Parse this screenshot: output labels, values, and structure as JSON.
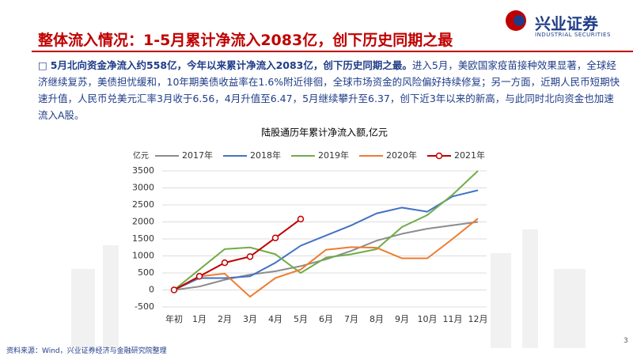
{
  "header": {
    "title": "整体流入情况：1-5月累计净流入2083亿，创下历史同期之最",
    "logo": "兴业证券",
    "logo_en": "INDUSTRIAL SECURITIES"
  },
  "body": {
    "bold": "5月北向资金净流入约558亿，今年以来累计净流入2083亿，创下历史同期之最。",
    "text": "进入5月，美欧国家疫苗接种效果显著，全球经济继续复苏，美债担忧缓和，10年期美债收益率在1.6%附近徘徊，全球市场资金的风险偏好持续修复；另一方面，近期人民币短期快速升值，人民币兑美元汇率3月收于6.56，4月升值至6.47，5月继续攀升至6.37，创下近3年以来的新高，与此同时北向资金也加速流入A股。"
  },
  "footer": {
    "source": "资料来源：Wind，兴业证券经济与金融研究院整理",
    "page": "3"
  },
  "chart_data": {
    "type": "line",
    "title": "陆股通历年累计净流入额,亿元",
    "y_unit": "亿元",
    "categories": [
      "年初",
      "1月",
      "2月",
      "3月",
      "4月",
      "5月",
      "6月",
      "7月",
      "8月",
      "9月",
      "10月",
      "11月",
      "12月"
    ],
    "series": [
      {
        "name": "2017年",
        "color": "#8c8c8c",
        "values": [
          0,
          100,
          300,
          450,
          550,
          700,
          900,
          1150,
          1450,
          1650,
          1800,
          1900,
          2000
        ]
      },
      {
        "name": "2018年",
        "color": "#4472c4",
        "values": [
          0,
          350,
          350,
          400,
          800,
          1300,
          1600,
          1900,
          2250,
          2420,
          2300,
          2750,
          2930
        ]
      },
      {
        "name": "2019年",
        "color": "#70ad47",
        "values": [
          0,
          600,
          1200,
          1250,
          1050,
          500,
          950,
          1050,
          1200,
          1850,
          2200,
          2800,
          3500
        ]
      },
      {
        "name": "2020年",
        "color": "#ed7d31",
        "values": [
          0,
          400,
          480,
          -200,
          350,
          600,
          1180,
          1260,
          1240,
          930,
          930,
          1500,
          2100
        ]
      },
      {
        "name": "2021年",
        "color": "#c00000",
        "markers": true,
        "values": [
          0,
          400,
          800,
          980,
          1530,
          2083,
          null,
          null,
          null,
          null,
          null,
          null,
          null
        ]
      }
    ],
    "ylim": [
      -500,
      3500
    ],
    "yticks": [
      -500,
      0,
      500,
      1000,
      1500,
      2000,
      2500,
      3000,
      3500
    ],
    "grid": true
  }
}
